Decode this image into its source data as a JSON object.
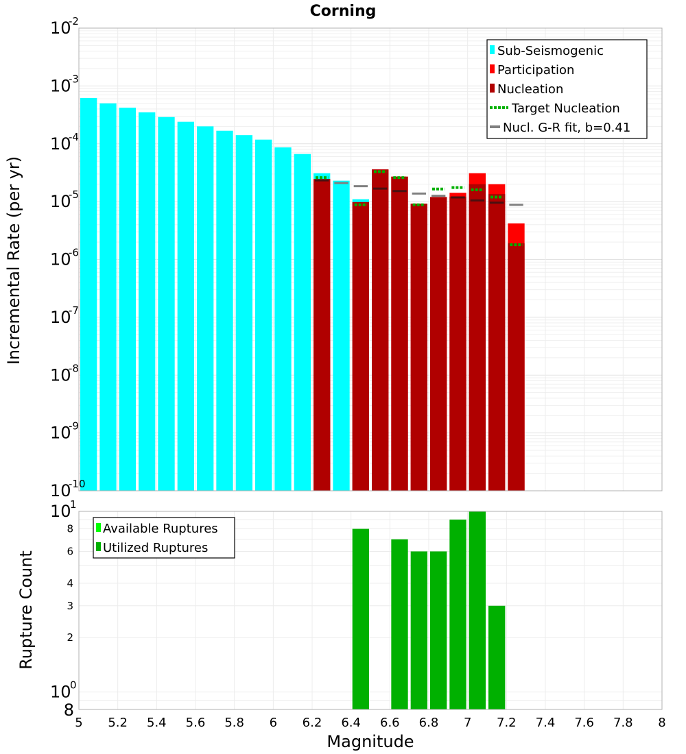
{
  "chart_data": [
    {
      "type": "bar",
      "title": "Corning",
      "xlabel": "",
      "ylabel": "Incremental Rate (per yr)",
      "xlim": [
        5,
        8
      ],
      "ylim": [
        1e-10,
        0.01
      ],
      "yscale": "log",
      "ytick_base": "10",
      "ytick_exponents": [
        "-2",
        "-3",
        "-4",
        "-5",
        "-6",
        "-7",
        "-8",
        "-9",
        "-10"
      ],
      "bin_width": 0.1,
      "grid": true,
      "legend_position": "top-right",
      "legend": [
        "Sub-Seismogenic",
        "Participation",
        "Nucleation",
        "Target Nucleation",
        "Nucl. G-R fit, b=0.41"
      ],
      "colors": {
        "sub_seismogenic": "#00ffff",
        "participation": "#ff0000",
        "nucleation": "#b00000",
        "target_nucleation": "#00b000",
        "gr_fit": "#808080",
        "gr_fit_on_bar": "#4a1010"
      },
      "series": [
        {
          "name": "Sub-Seismogenic",
          "x": [
            5.05,
            5.15,
            5.25,
            5.35,
            5.45,
            5.55,
            5.65,
            5.75,
            5.85,
            5.95,
            6.05,
            6.15,
            6.25,
            6.35,
            6.45
          ],
          "values": [
            0.00062,
            0.0005,
            0.00042,
            0.00035,
            0.00029,
            0.00024,
            0.0002,
            0.000168,
            0.000141,
            0.000118,
            8.65e-05,
            6.65e-05,
            3.1e-05,
            2.3e-05,
            1.1e-05
          ]
        },
        {
          "name": "Participation",
          "x": [
            6.25,
            6.45,
            6.55,
            6.65,
            6.75,
            6.85,
            6.95,
            7.05,
            7.15,
            7.25
          ],
          "values": [
            2.45e-05,
            9.8e-06,
            3.6e-05,
            2.7e-05,
            9.2e-06,
            1.2e-05,
            1.42e-05,
            3.1e-05,
            2e-05,
            4.2e-06
          ]
        },
        {
          "name": "Nucleation",
          "x": [
            6.25,
            6.45,
            6.55,
            6.65,
            6.75,
            6.85,
            6.95,
            7.05,
            7.15,
            7.25
          ],
          "values": [
            2.45e-05,
            9.8e-06,
            3.6e-05,
            2.7e-05,
            9.2e-06,
            1.2e-05,
            1.22e-05,
            2e-05,
            1.35e-05,
            1.9e-06
          ]
        },
        {
          "name": "Target Nucleation",
          "x": [
            6.25,
            6.45,
            6.55,
            6.65,
            6.75,
            6.85,
            6.95,
            7.05,
            7.15,
            7.25
          ],
          "values": [
            2.6e-05,
            8.8e-06,
            3.3e-05,
            2.6e-05,
            8.8e-06,
            1.65e-05,
            1.75e-05,
            1.6e-05,
            1.2e-05,
            1.8e-06
          ]
        },
        {
          "name": "Nucl. G-R fit, b=0.41",
          "x": [
            6.25,
            6.35,
            6.45,
            6.55,
            6.65,
            6.75,
            6.85,
            6.95,
            7.05,
            7.15,
            7.25
          ],
          "values": [
            2.33e-05,
            2.1e-05,
            1.85e-05,
            1.68e-05,
            1.52e-05,
            1.38e-05,
            1.26e-05,
            1.18e-05,
            1.05e-05,
            9.6e-06,
            8.8e-06
          ]
        }
      ]
    },
    {
      "type": "bar",
      "title": "",
      "xlabel": "Magnitude",
      "ylabel": "Rupture Count",
      "xlim": [
        5,
        8
      ],
      "ylim": [
        0.8,
        10
      ],
      "yscale": "log",
      "xticks": [
        "5",
        "5.2",
        "5.4",
        "5.6",
        "5.8",
        "6",
        "6.2",
        "6.4",
        "6.6",
        "6.8",
        "7",
        "7.2",
        "7.4",
        "7.6",
        "7.8",
        "8"
      ],
      "yticks_minor": [
        "8",
        "6",
        "4",
        "3",
        "2"
      ],
      "ytick_major_base": "10",
      "ytick_major_exponents": [
        "1",
        "0"
      ],
      "ytick_bottom": "8",
      "grid": true,
      "legend_position": "top-left",
      "legend": [
        "Available Ruptures",
        "Utilized Ruptures"
      ],
      "colors": {
        "available": "#00ff00",
        "utilized": "#00b000"
      },
      "series": [
        {
          "name": "Utilized Ruptures",
          "x": [
            6.45,
            6.65,
            6.75,
            6.85,
            6.95,
            7.05,
            7.15
          ],
          "values": [
            8,
            7,
            6,
            6,
            9,
            10,
            3
          ]
        }
      ]
    }
  ]
}
